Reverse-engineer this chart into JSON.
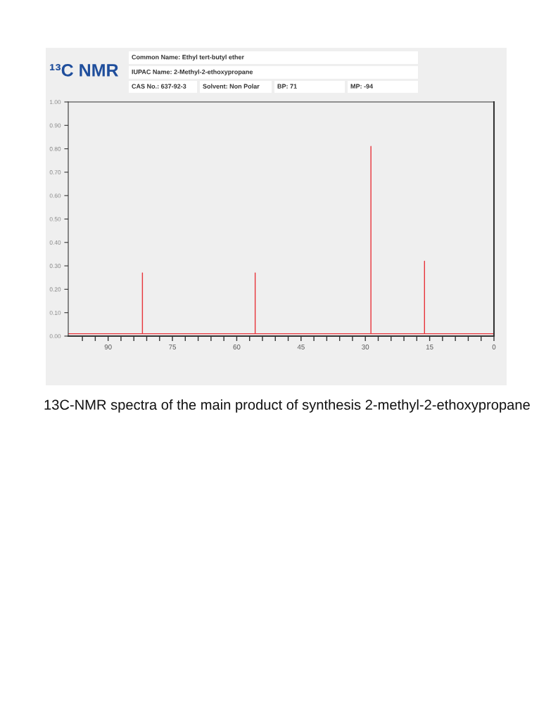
{
  "chart_data": {
    "type": "line",
    "title": "¹³C NMR",
    "annotations": [
      "Common Name: Ethyl tert-butyl ether",
      "IUPAC Name: 2-Methyl-2-ethoxypropane",
      "CAS No.: 637-92-3",
      "Solvent: Non Polar",
      "BP: 71",
      "MP: -94",
      "13C-NMR spectra of the main product of synthesis 2-methyl-2-ethoxypropane"
    ],
    "series": [
      {
        "color": "#e8333a",
        "x": [
          99.3,
          82.0,
          82.0,
          82.0,
          55.7,
          55.7,
          55.7,
          28.7,
          28.7,
          28.7,
          16.2,
          16.2,
          16.2,
          0
        ],
        "values": [
          0.01,
          0.01,
          0.27,
          0.01,
          0.01,
          0.27,
          0.01,
          0.01,
          0.81,
          0.01,
          0.01,
          0.32,
          0.01,
          0.01
        ]
      }
    ],
    "xlim": [
      99.3,
      0
    ],
    "ylim": [
      0,
      1
    ],
    "xticks": [
      90,
      75,
      60,
      45,
      30,
      15,
      0,
      {
        "value": 96,
        "label": null
      },
      {
        "value": 93,
        "label": null
      },
      {
        "value": 87,
        "label": null
      },
      {
        "value": 84,
        "label": null
      },
      {
        "value": 81,
        "label": null
      },
      {
        "value": 78,
        "label": null
      },
      {
        "value": 72,
        "label": null
      },
      {
        "value": 69,
        "label": null
      },
      {
        "value": 66,
        "label": null
      },
      {
        "value": 63,
        "label": null
      },
      {
        "value": 57,
        "label": null
      },
      {
        "value": 54,
        "label": null
      },
      {
        "value": 51,
        "label": null
      },
      {
        "value": 48,
        "label": null
      },
      {
        "value": 42,
        "label": null
      },
      {
        "value": 39,
        "label": null
      },
      {
        "value": 36,
        "label": null
      },
      {
        "value": 33,
        "label": null
      },
      {
        "value": 27,
        "label": null
      },
      {
        "value": 24,
        "label": null
      },
      {
        "value": 21,
        "label": null
      },
      {
        "value": 18,
        "label": null
      },
      {
        "value": 12,
        "label": null
      },
      {
        "value": 9,
        "label": null
      },
      {
        "value": 6,
        "label": null
      },
      {
        "value": 3,
        "label": null
      }
    ],
    "yticks": [
      {
        "value": 0,
        "label": "0.00"
      },
      {
        "value": 0.1,
        "label": "0.10"
      },
      {
        "value": 0.2,
        "label": "0.20"
      },
      {
        "value": 0.3,
        "label": "0.30"
      },
      {
        "value": 0.4,
        "label": "0.40"
      },
      {
        "value": 0.5,
        "label": "0.50"
      },
      {
        "value": 0.6,
        "label": "0.60"
      },
      {
        "value": 0.7,
        "label": "0.70"
      },
      {
        "value": 0.8,
        "label": "0.80"
      },
      {
        "value": 0.9,
        "label": "0.90"
      },
      {
        "value": 1,
        "label": "1.00"
      }
    ],
    "grid": false,
    "marker": "none",
    "line_style": "solid"
  }
}
